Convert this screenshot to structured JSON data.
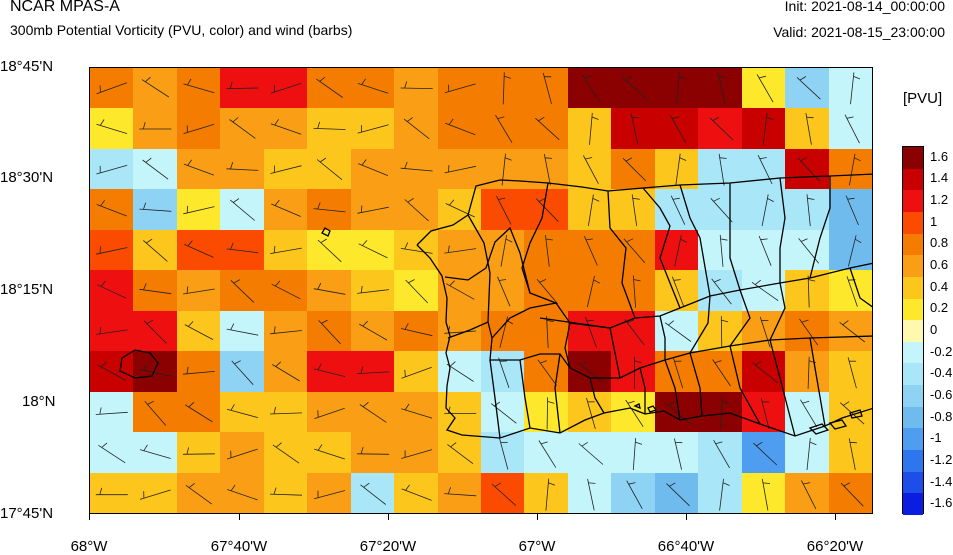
{
  "header": {
    "title": "NCAR MPAS-A",
    "subtitle": "300mb Potential Vorticity (PVU, color) and wind (barbs)",
    "init": "Init: 2021-08-14_00:00:00",
    "valid": "Valid: 2021-08-15_23:00:00"
  },
  "colorbar": {
    "units": "[PVU]",
    "labels": [
      "1.6",
      "1.4",
      "1.2",
      "1",
      "0.8",
      "0.6",
      "0.4",
      "0.2",
      "0",
      "-0.2",
      "-0.4",
      "-0.6",
      "-0.8",
      "-1",
      "-1.2",
      "-1.4",
      "-1.6"
    ],
    "colors": [
      "#8b0000",
      "#c80000",
      "#ee1010",
      "#fb4b00",
      "#f47c00",
      "#f99e15",
      "#fcc61d",
      "#fee82b",
      "#fff9b0",
      "#c3f5fb",
      "#a8e6f8",
      "#8ed2f4",
      "#70bbee",
      "#4e9df0",
      "#2d76ee",
      "#1e4ee8",
      "#0a1de0"
    ]
  },
  "axes": {
    "y_labels": [
      "18°45'N",
      "18°30'N",
      "18°15'N",
      "18°N",
      "17°45'N"
    ],
    "x_labels": [
      "68°W",
      "67°40'W",
      "67°20'W",
      "67°W",
      "66°40'W",
      "66°20'W"
    ]
  },
  "pv_grid": [
    [
      0.8,
      0.6,
      0.8,
      1.2,
      1.2,
      0.8,
      0.8,
      0.6,
      0.8,
      0.8,
      0.8,
      1.6,
      1.6,
      1.6,
      1.6,
      0.2,
      -0.6,
      -0.2
    ],
    [
      0.2,
      0.6,
      0.8,
      0.6,
      0.6,
      0.4,
      0.4,
      0.6,
      0.8,
      0.8,
      0.8,
      0.4,
      1.4,
      1.4,
      1.2,
      1.4,
      0.4,
      -0.2
    ],
    [
      -0.4,
      -0.2,
      0.6,
      0.6,
      0.4,
      0.4,
      0.6,
      0.6,
      0.6,
      0.6,
      0.6,
      0.4,
      0.8,
      0.4,
      -0.4,
      -0.4,
      1.4,
      0.8
    ],
    [
      0.8,
      -0.6,
      0.2,
      -0.2,
      0.6,
      0.8,
      0.6,
      0.6,
      0.4,
      1,
      1,
      0.4,
      0.4,
      -0.4,
      -0.4,
      -0.4,
      -0.4,
      -0.8
    ],
    [
      1,
      0.4,
      1,
      1,
      0.4,
      0.2,
      0.2,
      0.4,
      0.6,
      0.6,
      0.8,
      0.8,
      0.8,
      1.2,
      -0.2,
      -0.2,
      -0.2,
      -0.8
    ],
    [
      1.2,
      0.8,
      0.6,
      0.8,
      0.8,
      0.6,
      0.4,
      0.2,
      0.6,
      0.6,
      0.8,
      0.8,
      0.8,
      0.4,
      -0.4,
      -0.2,
      0.4,
      0.2
    ],
    [
      1.2,
      1.2,
      0.4,
      -0.2,
      0.6,
      0.8,
      0.6,
      0.8,
      0.6,
      0.8,
      0.8,
      1.2,
      1.2,
      -0.2,
      0.4,
      0.6,
      0.8,
      0.6
    ],
    [
      1.4,
      1.6,
      0.8,
      -0.6,
      0.6,
      1.2,
      1.2,
      0.4,
      -0.2,
      -0.4,
      0.8,
      1.6,
      1.2,
      0.8,
      0.8,
      1.4,
      0.6,
      0.4
    ],
    [
      -0.2,
      0.8,
      0.8,
      0.4,
      0.4,
      0.6,
      0.6,
      0.6,
      0.4,
      -0.2,
      0.2,
      0.4,
      0.2,
      1.6,
      1.6,
      1.2,
      -0.2,
      0.4
    ],
    [
      -0.2,
      -0.2,
      0.4,
      0.6,
      0.4,
      0.4,
      0.6,
      0.6,
      0.4,
      -0.4,
      -0.2,
      -0.2,
      -0.2,
      -0.2,
      -0.4,
      -1,
      -0.2,
      0.4
    ],
    [
      0.4,
      0.4,
      0.6,
      0.6,
      0.4,
      0.6,
      -0.4,
      0.4,
      0.6,
      1,
      0.4,
      -0.2,
      -0.6,
      -0.8,
      -0.4,
      0.2,
      0.6,
      0.8
    ]
  ]
}
